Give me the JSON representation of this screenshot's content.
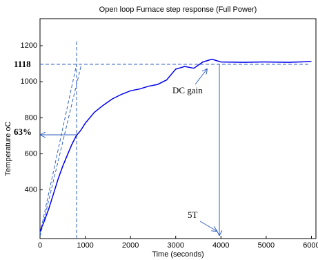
{
  "chart_data": {
    "type": "line",
    "title": "Open loop Furnace step response (Full Power)",
    "x_label": "Time (seconds)",
    "y_label": "Temperature oC",
    "annotations": [
      "1118",
      "63%",
      "DC gain",
      "5T"
    ],
    "x": [
      0,
      100,
      200,
      300,
      400,
      500,
      600,
      700,
      800,
      900,
      1000,
      1200,
      1400,
      1600,
      1800,
      2000,
      2200,
      2400,
      2600,
      2800,
      3000,
      3200,
      3400,
      3600,
      3800,
      4000,
      4500,
      5000,
      5500,
      6000
    ],
    "values": [
      170,
      230,
      300,
      380,
      460,
      530,
      590,
      650,
      700,
      730,
      770,
      830,
      870,
      905,
      930,
      950,
      960,
      975,
      985,
      1010,
      1070,
      1085,
      1075,
      1110,
      1125,
      1110,
      1108,
      1110,
      1108,
      1112
    ],
    "color": "#0000ee",
    "xlim": [
      0,
      6100
    ],
    "xticks": [
      0,
      1000,
      2000,
      3000,
      4000,
      5000,
      6000
    ],
    "ylim": [
      130,
      1350
    ],
    "yticks": [
      400,
      600,
      800,
      1000,
      1200
    ],
    "grid": false
  }
}
